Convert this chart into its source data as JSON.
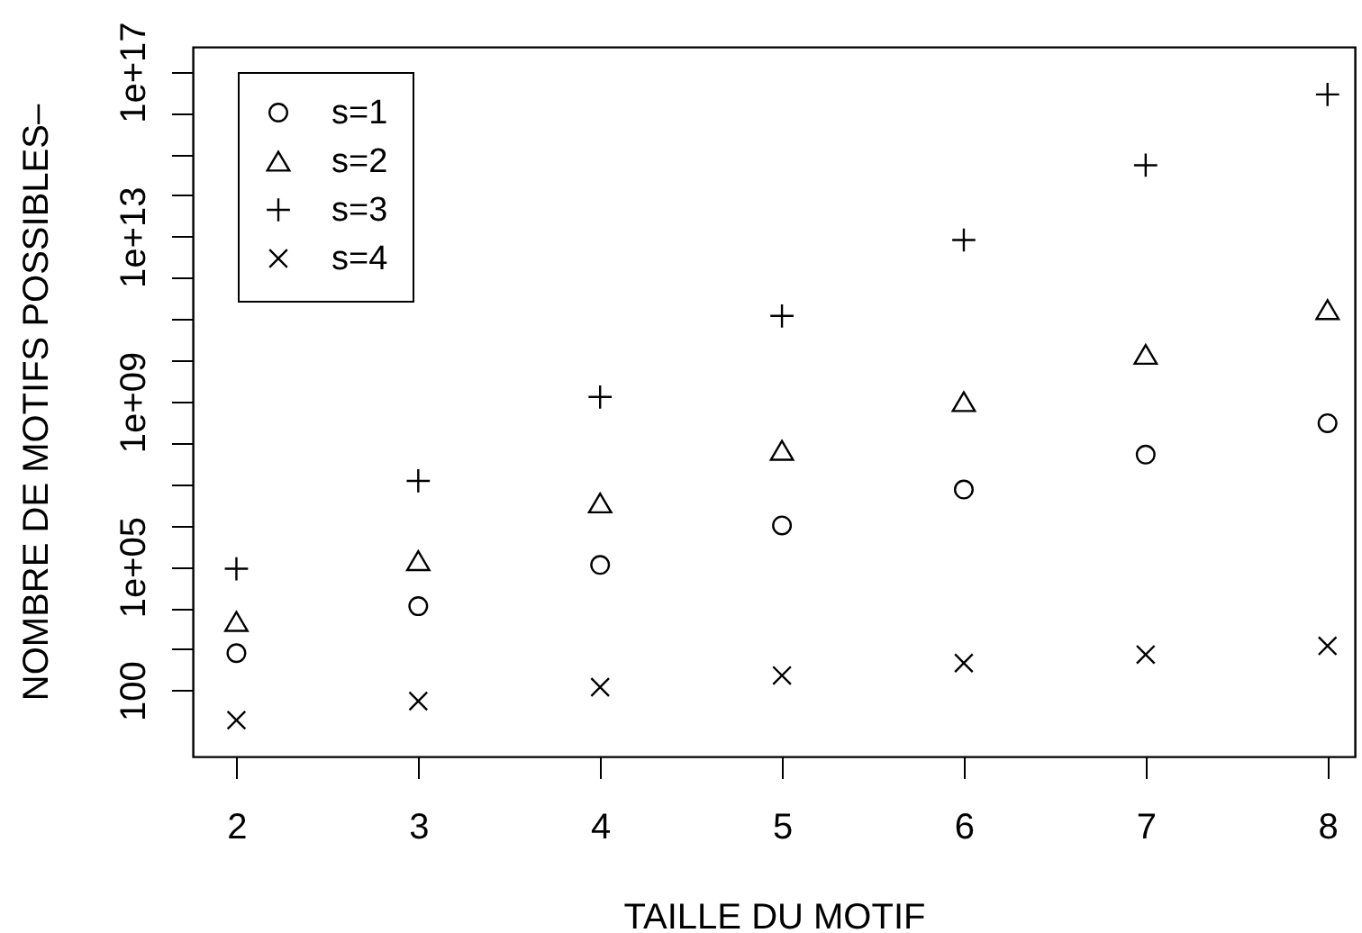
{
  "chart_data": {
    "type": "scatter",
    "xlabel": "TAILLE DU MOTIF",
    "ylabel": "NOMBRE DE MOTIFS POSSIBLES–",
    "x": [
      2,
      3,
      4,
      5,
      6,
      7,
      8
    ],
    "series": [
      {
        "name": "s=1",
        "color": "#000000",
        "marker": "circle",
        "values": [
          800,
          11000,
          110000,
          1000000,
          7400000,
          52000000,
          300000000
        ]
      },
      {
        "name": "s=2",
        "color": "#000000",
        "marker": "triangle",
        "values": [
          4700,
          140000,
          3500000,
          66000000,
          1000000000.0,
          14000000000.0,
          170000000000.0
        ]
      },
      {
        "name": "s=3",
        "color": "#000000",
        "marker": "cross",
        "values": [
          89000,
          12000000,
          1300000000.0,
          120000000000.0,
          8300000000000.0,
          540000000000000.0,
          2.8e+16
        ]
      },
      {
        "name": "s=4",
        "color": "#000000",
        "marker": "x",
        "values": [
          19,
          55,
          120,
          230,
          460,
          740,
          1200
        ]
      }
    ],
    "xlim": [
      1.76,
      8.15
    ],
    "xticks": [
      2,
      3,
      4,
      5,
      6,
      7,
      8
    ],
    "ylim": [
      2.5,
      4e+17
    ],
    "yticks": [
      100,
      {
        "value": 1000.0,
        "label": null
      },
      {
        "value": 10000.0,
        "label": null
      },
      {
        "value": 100000.0,
        "label": "1e+05"
      },
      {
        "value": 1000000.0,
        "label": null
      },
      {
        "value": 10000000.0,
        "label": null
      },
      {
        "value": 100000000.0,
        "label": null
      },
      {
        "value": 1000000000.0,
        "label": "1e+09"
      },
      {
        "value": 10000000000.0,
        "label": null
      },
      {
        "value": 100000000000.0,
        "label": null
      },
      {
        "value": 1000000000000.0,
        "label": null
      },
      {
        "value": 10000000000000.0,
        "label": "1e+13"
      },
      {
        "value": 100000000000000.0,
        "label": null
      },
      {
        "value": 1000000000000000.0,
        "label": null
      },
      {
        "value": 1e+16,
        "label": null
      },
      {
        "value": 1e+17,
        "label": "1e+17"
      }
    ],
    "log": "y",
    "grid": false,
    "legend": "top left"
  }
}
